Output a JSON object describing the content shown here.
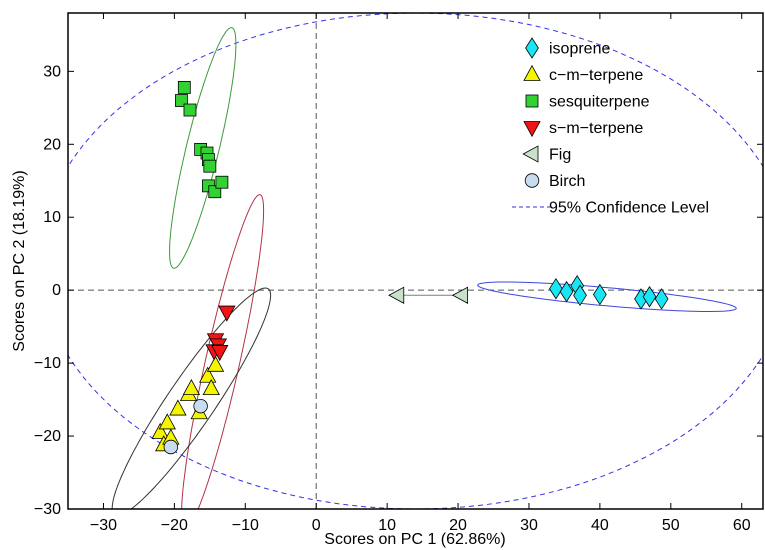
{
  "chart_data": {
    "type": "scatter",
    "title": "",
    "xlabel": "Scores on PC 1 (62.86%)",
    "ylabel": "Scores on PC 2 (18.19%)",
    "xlim": [
      -35,
      63
    ],
    "ylim": [
      -30,
      38
    ],
    "xticks": [
      -30,
      -20,
      -10,
      0,
      10,
      20,
      30,
      40,
      50,
      60
    ],
    "yticks": [
      -30,
      -20,
      -10,
      0,
      10,
      20,
      30
    ],
    "grid": false,
    "legend_position": "top-right",
    "series": [
      {
        "name": "isoprene",
        "marker": "diamond",
        "color": "#19e6f5",
        "points": [
          [
            33.8,
            0.2
          ],
          [
            35.3,
            -0.2
          ],
          [
            36.8,
            0.6
          ],
          [
            37.2,
            -0.7
          ],
          [
            40,
            -0.6
          ],
          [
            45.8,
            -1.2
          ],
          [
            47,
            -0.9
          ],
          [
            48.7,
            -1.2
          ]
        ]
      },
      {
        "name": "c−m−terpene",
        "marker": "triangle-up",
        "color": "#f5f500",
        "points": [
          [
            -22,
            -19.5
          ],
          [
            -21.5,
            -21.2
          ],
          [
            -21,
            -18.2
          ],
          [
            -20.5,
            -20.3
          ],
          [
            -19.5,
            -16.3
          ],
          [
            -18,
            -14.3
          ],
          [
            -17.6,
            -13.5
          ],
          [
            -16.5,
            -16.8
          ],
          [
            -15.3,
            -11.8
          ],
          [
            -14.8,
            -13.5
          ],
          [
            -14.2,
            -10.3
          ]
        ]
      },
      {
        "name": "sesquiterpene",
        "marker": "square",
        "color": "#32d232",
        "points": [
          [
            -19,
            26
          ],
          [
            -18.6,
            27.8
          ],
          [
            -17.8,
            24.7
          ],
          [
            -16.3,
            19.3
          ],
          [
            -15.4,
            18.8
          ],
          [
            -15.2,
            17.9
          ],
          [
            -15,
            17
          ],
          [
            -15.2,
            14.3
          ],
          [
            -14.3,
            13.5
          ],
          [
            -13.3,
            14.8
          ]
        ]
      },
      {
        "name": "s−m−terpene",
        "marker": "triangle-down",
        "color": "#f01414",
        "points": [
          [
            -12.6,
            -3
          ],
          [
            -14.2,
            -6.8
          ],
          [
            -13.8,
            -7.5
          ],
          [
            -14.4,
            -8.3
          ],
          [
            -13.6,
            -8.4
          ]
        ]
      },
      {
        "name": "Fig",
        "marker": "triangle-left",
        "color": "#c8e1c8",
        "points": [
          [
            20.5,
            -0.7
          ],
          [
            11.5,
            -0.7
          ]
        ]
      },
      {
        "name": "Birch",
        "marker": "circle",
        "color": "#c8dcf0",
        "points": [
          [
            -16.3,
            -15.9
          ],
          [
            -20.5,
            -21.5
          ]
        ]
      },
      {
        "name": "95% Confidence Level",
        "marker": "dashed-line",
        "color": "#3232e6",
        "points": []
      }
    ],
    "confidence_ellipse": {
      "cx": 14,
      "cy": 4,
      "rx": 53,
      "ry": 34,
      "angle_deg": 0,
      "color": "#3232e6"
    },
    "group_ellipses": [
      {
        "group": "sesquiterpene",
        "cx": -16,
        "cy": 19.5,
        "rx": 17,
        "ry": 2.3,
        "angle_deg": 76,
        "color": "#3c9a3c"
      },
      {
        "group": "s−m−terpene",
        "cx": -13.2,
        "cy": -9.8,
        "rx": 23.5,
        "ry": 2.4,
        "angle_deg": 77,
        "color": "#b43246"
      },
      {
        "group": "c−m−terpene",
        "cx": -17.6,
        "cy": -15.3,
        "rx": 18.9,
        "ry": 3.3,
        "angle_deg": 55,
        "color": "#333333"
      },
      {
        "group": "isoprene",
        "cx": 41,
        "cy": -0.9,
        "rx": 18.3,
        "ry": 1.25,
        "angle_deg": -5,
        "color": "#3c46dc"
      }
    ]
  }
}
